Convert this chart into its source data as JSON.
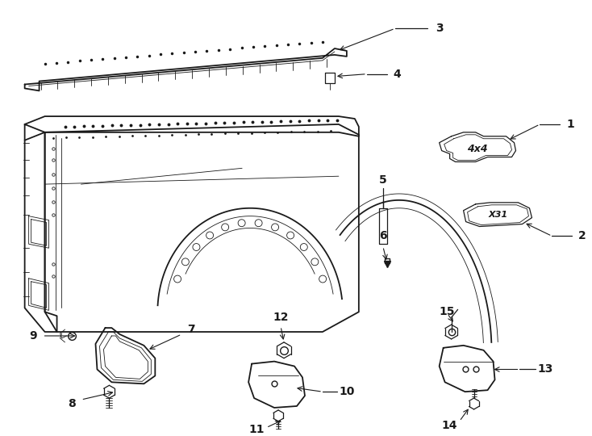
{
  "bg_color": "#ffffff",
  "line_color": "#1a1a1a",
  "fig_width": 7.34,
  "fig_height": 5.4,
  "dpi": 100,
  "lw_main": 1.3,
  "lw_med": 0.9,
  "lw_thin": 0.6,
  "font_size_label": 10,
  "font_size_small": 9
}
